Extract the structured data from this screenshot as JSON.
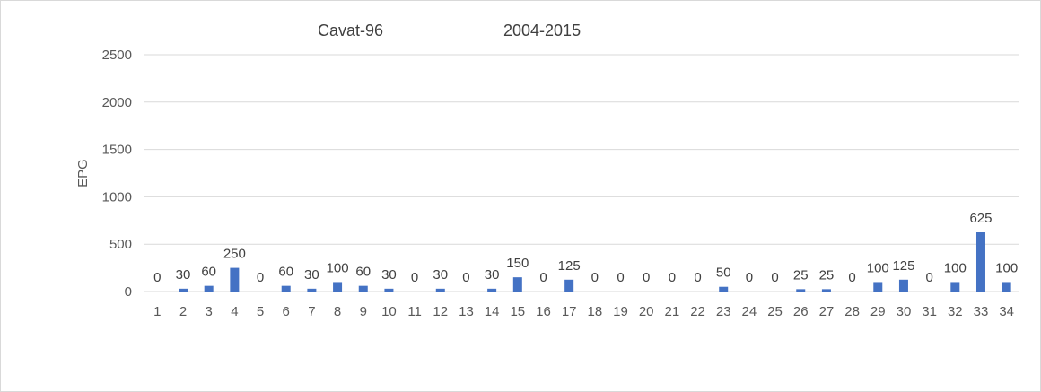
{
  "chart_data": {
    "type": "bar",
    "title_left": "Cavat-96",
    "title_right": "2004-2015",
    "xlabel": "",
    "ylabel": "EPG",
    "ylim": [
      0,
      2500
    ],
    "yticks": [
      0,
      500,
      1000,
      1500,
      2000,
      2500
    ],
    "grid": true,
    "legend": "none",
    "bar_color": "#4472c4",
    "categories": [
      "1",
      "2",
      "3",
      "4",
      "5",
      "6",
      "7",
      "8",
      "9",
      "10",
      "11",
      "12",
      "13",
      "14",
      "15",
      "16",
      "17",
      "18",
      "19",
      "20",
      "21",
      "22",
      "23",
      "24",
      "25",
      "26",
      "27",
      "28",
      "29",
      "30",
      "31",
      "32",
      "33",
      "34"
    ],
    "values": [
      0,
      30,
      60,
      250,
      0,
      60,
      30,
      100,
      60,
      30,
      0,
      30,
      0,
      30,
      150,
      0,
      125,
      0,
      0,
      0,
      0,
      0,
      50,
      0,
      0,
      25,
      25,
      0,
      100,
      125,
      0,
      100,
      625,
      100
    ]
  }
}
